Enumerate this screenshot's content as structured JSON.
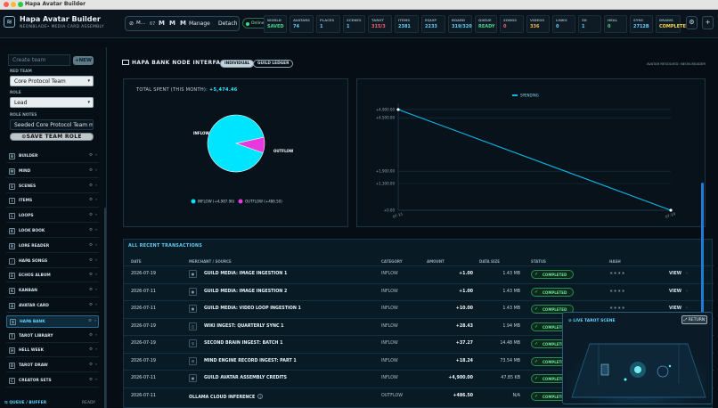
{
  "window": {
    "title": "Hapa Avatar Builder"
  },
  "header": {
    "app_title": "Hapa Avatar Builder",
    "app_subtitle": "NEONBLADE• MEDIA CARD ASSEMBLY",
    "controls": {
      "m_label": "M…",
      "m_count": "67",
      "m1": "M",
      "m2": "M",
      "m3": "M",
      "manage": "Manage",
      "detach": "Detach"
    },
    "online": "Online",
    "stats": [
      {
        "label": "WORLD",
        "value": "SAVED",
        "color": "#47d98a"
      },
      {
        "label": "AVATARS",
        "value": "74",
        "color": "#5fd3ff"
      },
      {
        "label": "PLACES",
        "value": "1",
        "color": "#5fd3ff"
      },
      {
        "label": "SCENES",
        "value": "1",
        "color": "#5fd3ff"
      },
      {
        "label": "TAROT",
        "value": "315/3",
        "color": "#ff5b6e"
      },
      {
        "label": "ITEMS",
        "value": "2381",
        "color": "#5fd3ff"
      },
      {
        "label": "EQUIP",
        "value": "2233",
        "color": "#5fd3ff"
      },
      {
        "label": "BOARD",
        "value": "319/320",
        "color": "#5fd3ff"
      },
      {
        "label": "QUEUE",
        "value": "READY",
        "color": "#47d98a"
      },
      {
        "label": "SONGS",
        "value": "0",
        "color": "#ff5b6e"
      },
      {
        "label": "VIDEOS",
        "value": "336",
        "color": "#ffb74a"
      },
      {
        "label": "LINKS",
        "value": "0",
        "color": "#5fd3ff"
      },
      {
        "label": "3D",
        "value": "1",
        "color": "#5fd3ff"
      },
      {
        "label": "HEAL",
        "value": "0",
        "color": "#47d98a"
      },
      {
        "label": "SYNC",
        "value": "2712B",
        "color": "#5fd3ff"
      },
      {
        "label": "DRAWS",
        "value": "COMPLETE",
        "color": "#ffd84a"
      }
    ]
  },
  "sidebar": {
    "create_team_placeholder": "Create team",
    "new_button": "+NEW",
    "red_team_label": "RED TEAM",
    "team_value": "Core Protocol Team",
    "role_label": "ROLE",
    "role_value": "Lead",
    "role_notes_label": "ROLE NOTES",
    "role_notes_value": "Seeded Core Protocol Team m",
    "save_button": "SAVE TEAM ROLE",
    "nav": [
      {
        "label": "BUILDER",
        "icon": "B"
      },
      {
        "label": "MIND",
        "icon": "M"
      },
      {
        "label": "SCENES",
        "icon": "S"
      },
      {
        "label": "ITEMS",
        "icon": "I"
      },
      {
        "label": "LOOPS",
        "icon": "L"
      },
      {
        "label": "LOOK BOOK",
        "icon": "K"
      },
      {
        "label": "LORE READER",
        "icon": "R"
      },
      {
        "label": "HAPA SONGS",
        "icon": "♪"
      },
      {
        "label": "ECHOS ALBUM",
        "icon": "E"
      },
      {
        "label": "KANBAN",
        "icon": "K"
      },
      {
        "label": "AVATAR CARD",
        "icon": "A"
      },
      {
        "label": "HAPA BANK",
        "icon": "$"
      },
      {
        "label": "TAROT LIBRARY",
        "icon": "T"
      },
      {
        "label": "HELL WEEK",
        "icon": "H"
      },
      {
        "label": "TAROT DRAW",
        "icon": "D"
      },
      {
        "label": "CREATOR SETS",
        "icon": "C"
      }
    ],
    "queue_label": "QUEUE / BUFFER",
    "queue_status": "READY"
  },
  "main": {
    "interface_title": "HAPA BANK NODE INTERFACE",
    "tab_individual": "INDIVIDUAL",
    "tab_guild": "GUILD LEDGER",
    "resolved_text": "AVATAR RESOLVED: NEON-READER",
    "total_spent_label": "TOTAL SPENT (THIS MONTH):",
    "total_spent_value": "+5,474.46",
    "table_title": "ALL RECENT TRANSACTIONS",
    "columns": [
      "DATE",
      "MERCHANT / SOURCE",
      "CATEGORY",
      "AMOUNT",
      "DATA SIZE",
      "STATUS",
      "HASH"
    ],
    "transactions": [
      {
        "date": "2026-07-19",
        "merchant": "GUILD MEDIA: IMAGE INGESTION 1",
        "category": "INFLOW",
        "amount": "+1.00",
        "size": "1.43 MB",
        "status": "COMPLETED",
        "hash": "∗∗∗∗",
        "action": "VIEW"
      },
      {
        "date": "2026-07-11",
        "merchant": "GUILD MEDIA: IMAGE INGESTION 2",
        "category": "INFLOW",
        "amount": "+1.00",
        "size": "1.43 MB",
        "status": "COMPLETED",
        "hash": "∗∗∗∗",
        "action": "VIEW"
      },
      {
        "date": "2026-07-11",
        "merchant": "GUILD MEDIA: VIDEO LOOP INGESTION 1",
        "category": "INFLOW",
        "amount": "+10.00",
        "size": "1.43 MB",
        "status": "COMPLETED",
        "hash": "∗∗∗∗",
        "action": "VIEW"
      },
      {
        "date": "2026-07-19",
        "merchant": "WIKI INGEST: QUARTERLY SYNC 1",
        "category": "INFLOW",
        "amount": "+28.43",
        "size": "1.94 MB",
        "status": "COMPLETED",
        "hash": "",
        "action": ""
      },
      {
        "date": "2026-07-19",
        "merchant": "SECOND BRAIN INGEST: BATCH 1",
        "category": "INFLOW",
        "amount": "+37.27",
        "size": "14.48 MB",
        "status": "COMPLETED",
        "hash": "",
        "action": ""
      },
      {
        "date": "2026-07-19",
        "merchant": "MIND ENGINE RECORD INGEST: PART 1",
        "category": "INFLOW",
        "amount": "+18.24",
        "size": "73.54 MB",
        "status": "COMPLETED",
        "hash": "",
        "action": ""
      },
      {
        "date": "2026-07-11",
        "merchant": "GUILD AVATAR ASSEMBLY CREDITS",
        "category": "INFLOW",
        "amount": "+4,900.00",
        "size": "47.85 KB",
        "status": "COMPLETED",
        "hash": "",
        "action": ""
      },
      {
        "date": "2026-07-11",
        "merchant": "OLLAMA CLOUD INFERENCE",
        "category": "OUTFLOW",
        "amount": "+486.50",
        "size": "N/A",
        "status": "COMPLETED",
        "hash": "",
        "action": ""
      }
    ],
    "tarot_title": "LIVE TAROT SCENE",
    "return_button": "RETURN"
  },
  "chart_data": [
    {
      "type": "pie",
      "labels": [
        "INFLOW",
        "OUTFLOW"
      ],
      "values": [
        4987.96,
        486.5
      ],
      "legend": [
        "INFLOW (+4,987.96)",
        "OUTFLOW (+486.50)"
      ],
      "colors": [
        "#00e5ff",
        "#e838e0"
      ],
      "legend_position": "bottom"
    },
    {
      "type": "line",
      "x": [
        "07-11",
        "07-19"
      ],
      "series": [
        {
          "name": "SPENDING",
          "values": [
            4900,
            0
          ],
          "color": "#0db7e6"
        }
      ],
      "yticks": [
        "+0.00",
        "+1,300.00",
        "+1,900.00",
        "+4,500.00",
        "+4,900.00"
      ],
      "ylim": [
        0,
        5200
      ],
      "legend_position": "top",
      "grid": true
    }
  ]
}
